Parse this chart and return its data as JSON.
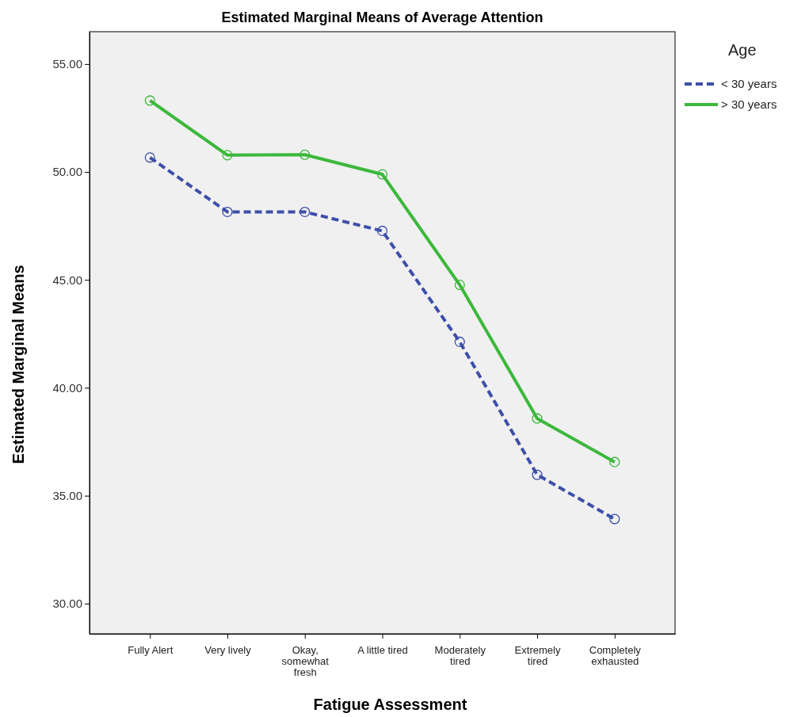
{
  "chart_data": {
    "type": "line",
    "title": "Estimated Marginal Means of Average Attention",
    "xlabel": "Fatigue Assessment",
    "ylabel": "Estimated Marginal Means",
    "legend_title": "Age",
    "categories": [
      "Fully Alert",
      "Very lively",
      "Okay, somewhat fresh",
      "A little tired",
      "Moderately tired",
      "Extremely tired",
      "Completely exhausted"
    ],
    "series": [
      {
        "name": "< 30 years",
        "color": "#3d4fa8",
        "line_style": "dashed",
        "values": [
          50.67,
          48.15,
          48.15,
          47.27,
          42.13,
          35.97,
          33.92
        ]
      },
      {
        "name": "> 30 years",
        "color": "#3cb83c",
        "line_style": "solid",
        "values": [
          53.31,
          50.78,
          50.8,
          49.89,
          44.77,
          38.58,
          36.56
        ]
      }
    ],
    "ylim": [
      28.6,
      56.5
    ],
    "yticks": [
      {
        "value": 30,
        "label": "30.00"
      },
      {
        "value": 35,
        "label": "35.00"
      },
      {
        "value": 40,
        "label": "40.00"
      },
      {
        "value": 45,
        "label": "45.00"
      },
      {
        "value": 50,
        "label": "50.00"
      },
      {
        "value": 55,
        "label": "55.00"
      }
    ],
    "marker": "circle",
    "legend": "top right",
    "grid": false
  }
}
